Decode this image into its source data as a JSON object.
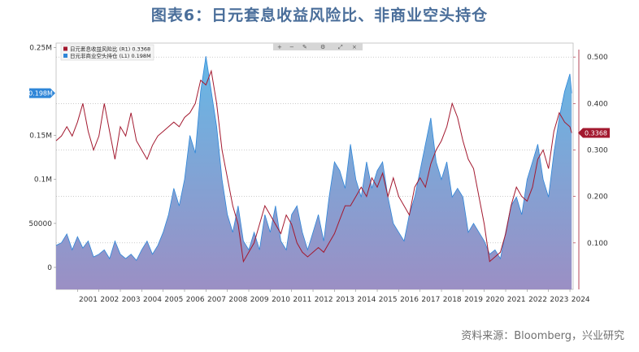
{
  "header": {
    "title": "图表6：日元套息收益风险比、非商业空头持仓"
  },
  "footer": {
    "source": "资料来源：Bloomberg，兴业研究"
  },
  "chart_data": {
    "type": "line",
    "title": "图表6：日元套息收益风险比、非商业空头持仓",
    "x_ticks": [
      "2001",
      "2002",
      "2003",
      "2004",
      "2005",
      "2006",
      "2007",
      "2008",
      "2009",
      "2010",
      "2011",
      "2012",
      "2013",
      "2014",
      "2015",
      "2016",
      "2017",
      "2018",
      "2019",
      "2020",
      "2021",
      "2022",
      "2023",
      "2024"
    ],
    "left_axis": {
      "ticks": [
        "0",
        "50000",
        "0.1M",
        "0.15M",
        "0.25M"
      ],
      "tick_values": [
        0,
        50000,
        100000,
        150000,
        250000
      ],
      "range": [
        -25000,
        255000
      ]
    },
    "right_axis": {
      "ticks": [
        "0.100",
        "0.200",
        "0.300",
        "0.400",
        "0.500"
      ],
      "tick_values": [
        0.1,
        0.2,
        0.3,
        0.4,
        0.5
      ],
      "range": [
        0.0,
        0.53
      ]
    },
    "legend_placement": "top-left",
    "grid": true,
    "current_labels": {
      "left": "0.198M",
      "left_value": 198000,
      "right": "0.3368",
      "right_value": 0.3368
    },
    "series": [
      {
        "name": "日元套息收益风险比 (R1) 0.3368",
        "axis": "right",
        "color": "#a3192f",
        "points": [
          [
            2000.0,
            0.32
          ],
          [
            2000.25,
            0.33
          ],
          [
            2000.5,
            0.35
          ],
          [
            2000.75,
            0.33
          ],
          [
            2001.0,
            0.36
          ],
          [
            2001.25,
            0.4
          ],
          [
            2001.5,
            0.34
          ],
          [
            2001.75,
            0.3
          ],
          [
            2002.0,
            0.33
          ],
          [
            2002.25,
            0.4
          ],
          [
            2002.5,
            0.34
          ],
          [
            2002.75,
            0.28
          ],
          [
            2003.0,
            0.35
          ],
          [
            2003.25,
            0.33
          ],
          [
            2003.5,
            0.38
          ],
          [
            2003.75,
            0.32
          ],
          [
            2004.0,
            0.3
          ],
          [
            2004.25,
            0.28
          ],
          [
            2004.5,
            0.31
          ],
          [
            2004.75,
            0.33
          ],
          [
            2005.0,
            0.34
          ],
          [
            2005.25,
            0.35
          ],
          [
            2005.5,
            0.36
          ],
          [
            2005.75,
            0.35
          ],
          [
            2006.0,
            0.37
          ],
          [
            2006.25,
            0.38
          ],
          [
            2006.5,
            0.4
          ],
          [
            2006.75,
            0.45
          ],
          [
            2007.0,
            0.44
          ],
          [
            2007.25,
            0.47
          ],
          [
            2007.5,
            0.4
          ],
          [
            2007.75,
            0.3
          ],
          [
            2008.0,
            0.24
          ],
          [
            2008.25,
            0.18
          ],
          [
            2008.5,
            0.14
          ],
          [
            2008.75,
            0.06
          ],
          [
            2009.0,
            0.08
          ],
          [
            2009.25,
            0.1
          ],
          [
            2009.5,
            0.14
          ],
          [
            2009.75,
            0.18
          ],
          [
            2010.0,
            0.16
          ],
          [
            2010.25,
            0.14
          ],
          [
            2010.5,
            0.12
          ],
          [
            2010.75,
            0.16
          ],
          [
            2011.0,
            0.14
          ],
          [
            2011.25,
            0.1
          ],
          [
            2011.5,
            0.08
          ],
          [
            2011.75,
            0.07
          ],
          [
            2012.0,
            0.08
          ],
          [
            2012.25,
            0.09
          ],
          [
            2012.5,
            0.08
          ],
          [
            2012.75,
            0.1
          ],
          [
            2013.0,
            0.12
          ],
          [
            2013.25,
            0.15
          ],
          [
            2013.5,
            0.18
          ],
          [
            2013.75,
            0.18
          ],
          [
            2014.0,
            0.2
          ],
          [
            2014.25,
            0.22
          ],
          [
            2014.5,
            0.2
          ],
          [
            2014.75,
            0.24
          ],
          [
            2015.0,
            0.22
          ],
          [
            2015.25,
            0.25
          ],
          [
            2015.5,
            0.2
          ],
          [
            2015.75,
            0.24
          ],
          [
            2016.0,
            0.2
          ],
          [
            2016.25,
            0.18
          ],
          [
            2016.5,
            0.16
          ],
          [
            2016.75,
            0.22
          ],
          [
            2017.0,
            0.24
          ],
          [
            2017.25,
            0.22
          ],
          [
            2017.5,
            0.27
          ],
          [
            2017.75,
            0.3
          ],
          [
            2018.0,
            0.32
          ],
          [
            2018.25,
            0.35
          ],
          [
            2018.5,
            0.4
          ],
          [
            2018.75,
            0.37
          ],
          [
            2019.0,
            0.32
          ],
          [
            2019.25,
            0.28
          ],
          [
            2019.5,
            0.26
          ],
          [
            2019.75,
            0.2
          ],
          [
            2020.0,
            0.14
          ],
          [
            2020.25,
            0.06
          ],
          [
            2020.5,
            0.07
          ],
          [
            2020.75,
            0.08
          ],
          [
            2021.0,
            0.12
          ],
          [
            2021.25,
            0.18
          ],
          [
            2021.5,
            0.22
          ],
          [
            2021.75,
            0.2
          ],
          [
            2022.0,
            0.19
          ],
          [
            2022.25,
            0.22
          ],
          [
            2022.5,
            0.28
          ],
          [
            2022.75,
            0.3
          ],
          [
            2023.0,
            0.26
          ],
          [
            2023.25,
            0.34
          ],
          [
            2023.5,
            0.38
          ],
          [
            2023.75,
            0.36
          ],
          [
            2024.0,
            0.35
          ],
          [
            2024.08,
            0.3368
          ]
        ]
      },
      {
        "name": "日元非商业空头持仓 (L1) 0.198M",
        "axis": "left",
        "color": "#2f86d8",
        "points": [
          [
            2000.0,
            25000
          ],
          [
            2000.25,
            28000
          ],
          [
            2000.5,
            38000
          ],
          [
            2000.75,
            20000
          ],
          [
            2001.0,
            35000
          ],
          [
            2001.25,
            22000
          ],
          [
            2001.5,
            30000
          ],
          [
            2001.75,
            12000
          ],
          [
            2002.0,
            15000
          ],
          [
            2002.25,
            20000
          ],
          [
            2002.5,
            10000
          ],
          [
            2002.75,
            30000
          ],
          [
            2003.0,
            15000
          ],
          [
            2003.25,
            10000
          ],
          [
            2003.5,
            15000
          ],
          [
            2003.75,
            8000
          ],
          [
            2004.0,
            20000
          ],
          [
            2004.25,
            30000
          ],
          [
            2004.5,
            15000
          ],
          [
            2004.75,
            25000
          ],
          [
            2005.0,
            40000
          ],
          [
            2005.25,
            60000
          ],
          [
            2005.5,
            90000
          ],
          [
            2005.75,
            70000
          ],
          [
            2006.0,
            100000
          ],
          [
            2006.25,
            150000
          ],
          [
            2006.5,
            130000
          ],
          [
            2006.75,
            200000
          ],
          [
            2007.0,
            240000
          ],
          [
            2007.25,
            200000
          ],
          [
            2007.5,
            160000
          ],
          [
            2007.75,
            100000
          ],
          [
            2008.0,
            60000
          ],
          [
            2008.25,
            40000
          ],
          [
            2008.5,
            70000
          ],
          [
            2008.75,
            30000
          ],
          [
            2009.0,
            20000
          ],
          [
            2009.25,
            40000
          ],
          [
            2009.5,
            20000
          ],
          [
            2009.75,
            60000
          ],
          [
            2010.0,
            40000
          ],
          [
            2010.25,
            70000
          ],
          [
            2010.5,
            30000
          ],
          [
            2010.75,
            20000
          ],
          [
            2011.0,
            60000
          ],
          [
            2011.25,
            70000
          ],
          [
            2011.5,
            40000
          ],
          [
            2011.75,
            20000
          ],
          [
            2012.0,
            40000
          ],
          [
            2012.25,
            60000
          ],
          [
            2012.5,
            30000
          ],
          [
            2012.75,
            80000
          ],
          [
            2013.0,
            120000
          ],
          [
            2013.25,
            110000
          ],
          [
            2013.5,
            90000
          ],
          [
            2013.75,
            140000
          ],
          [
            2014.0,
            100000
          ],
          [
            2014.25,
            80000
          ],
          [
            2014.5,
            120000
          ],
          [
            2014.75,
            90000
          ],
          [
            2015.0,
            110000
          ],
          [
            2015.25,
            120000
          ],
          [
            2015.5,
            80000
          ],
          [
            2015.75,
            50000
          ],
          [
            2016.0,
            40000
          ],
          [
            2016.25,
            30000
          ],
          [
            2016.5,
            60000
          ],
          [
            2016.75,
            80000
          ],
          [
            2017.0,
            110000
          ],
          [
            2017.25,
            140000
          ],
          [
            2017.5,
            170000
          ],
          [
            2017.75,
            120000
          ],
          [
            2018.0,
            100000
          ],
          [
            2018.25,
            120000
          ],
          [
            2018.5,
            80000
          ],
          [
            2018.75,
            90000
          ],
          [
            2019.0,
            80000
          ],
          [
            2019.25,
            40000
          ],
          [
            2019.5,
            50000
          ],
          [
            2019.75,
            40000
          ],
          [
            2020.0,
            30000
          ],
          [
            2020.25,
            15000
          ],
          [
            2020.5,
            20000
          ],
          [
            2020.75,
            10000
          ],
          [
            2021.0,
            40000
          ],
          [
            2021.25,
            70000
          ],
          [
            2021.5,
            80000
          ],
          [
            2021.75,
            60000
          ],
          [
            2022.0,
            100000
          ],
          [
            2022.25,
            120000
          ],
          [
            2022.5,
            140000
          ],
          [
            2022.75,
            100000
          ],
          [
            2023.0,
            80000
          ],
          [
            2023.25,
            130000
          ],
          [
            2023.5,
            170000
          ],
          [
            2023.75,
            200000
          ],
          [
            2024.0,
            220000
          ],
          [
            2024.08,
            198000
          ]
        ]
      }
    ]
  }
}
